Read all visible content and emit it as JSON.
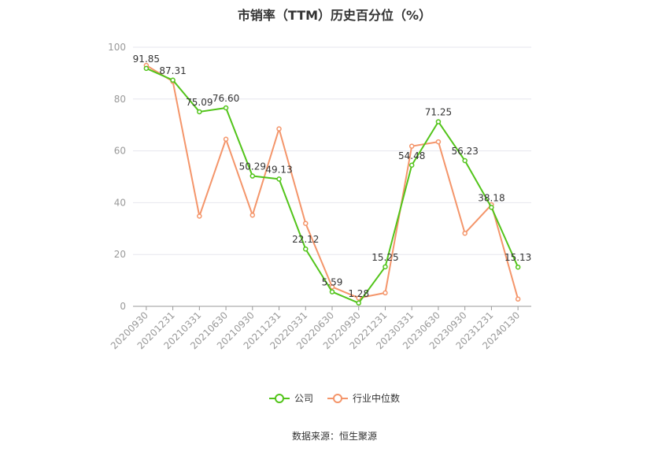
{
  "chart_data": {
    "type": "line",
    "title": "市销率（TTM）历史百分位（%）",
    "categories": [
      "20200930",
      "20201231",
      "20210331",
      "20210630",
      "20210930",
      "20211231",
      "20220331",
      "20220630",
      "20220930",
      "20221231",
      "20230331",
      "20230630",
      "20230930",
      "20231231",
      "20240130"
    ],
    "ylim": [
      0,
      100
    ],
    "yticks": [
      0,
      20,
      40,
      60,
      80,
      100
    ],
    "grid": true,
    "legend_position": "bottom",
    "series": [
      {
        "name": "公司",
        "color": "#52c41a",
        "values": [
          91.85,
          87.31,
          75.09,
          76.6,
          50.29,
          49.13,
          22.12,
          5.59,
          1.28,
          15.25,
          54.48,
          71.25,
          56.23,
          38.18,
          15.13
        ],
        "labels": [
          "91.85",
          "87.31",
          "75.09",
          "76.60",
          "50.29",
          "49.13",
          "22.12",
          "5.59",
          "1.28",
          "15.25",
          "54.48",
          "71.25",
          "56.23",
          "38.18",
          "15.13"
        ]
      },
      {
        "name": "行业中位数",
        "color": "#f4956a",
        "values": [
          93.0,
          86.8,
          34.8,
          64.5,
          35.2,
          68.5,
          32.0,
          7.5,
          3.2,
          5.2,
          61.8,
          63.5,
          28.2,
          39.2,
          2.8
        ]
      }
    ]
  },
  "legend": {
    "company": "公司",
    "industry": "行业中位数"
  },
  "source": "数据来源：恒生聚源"
}
